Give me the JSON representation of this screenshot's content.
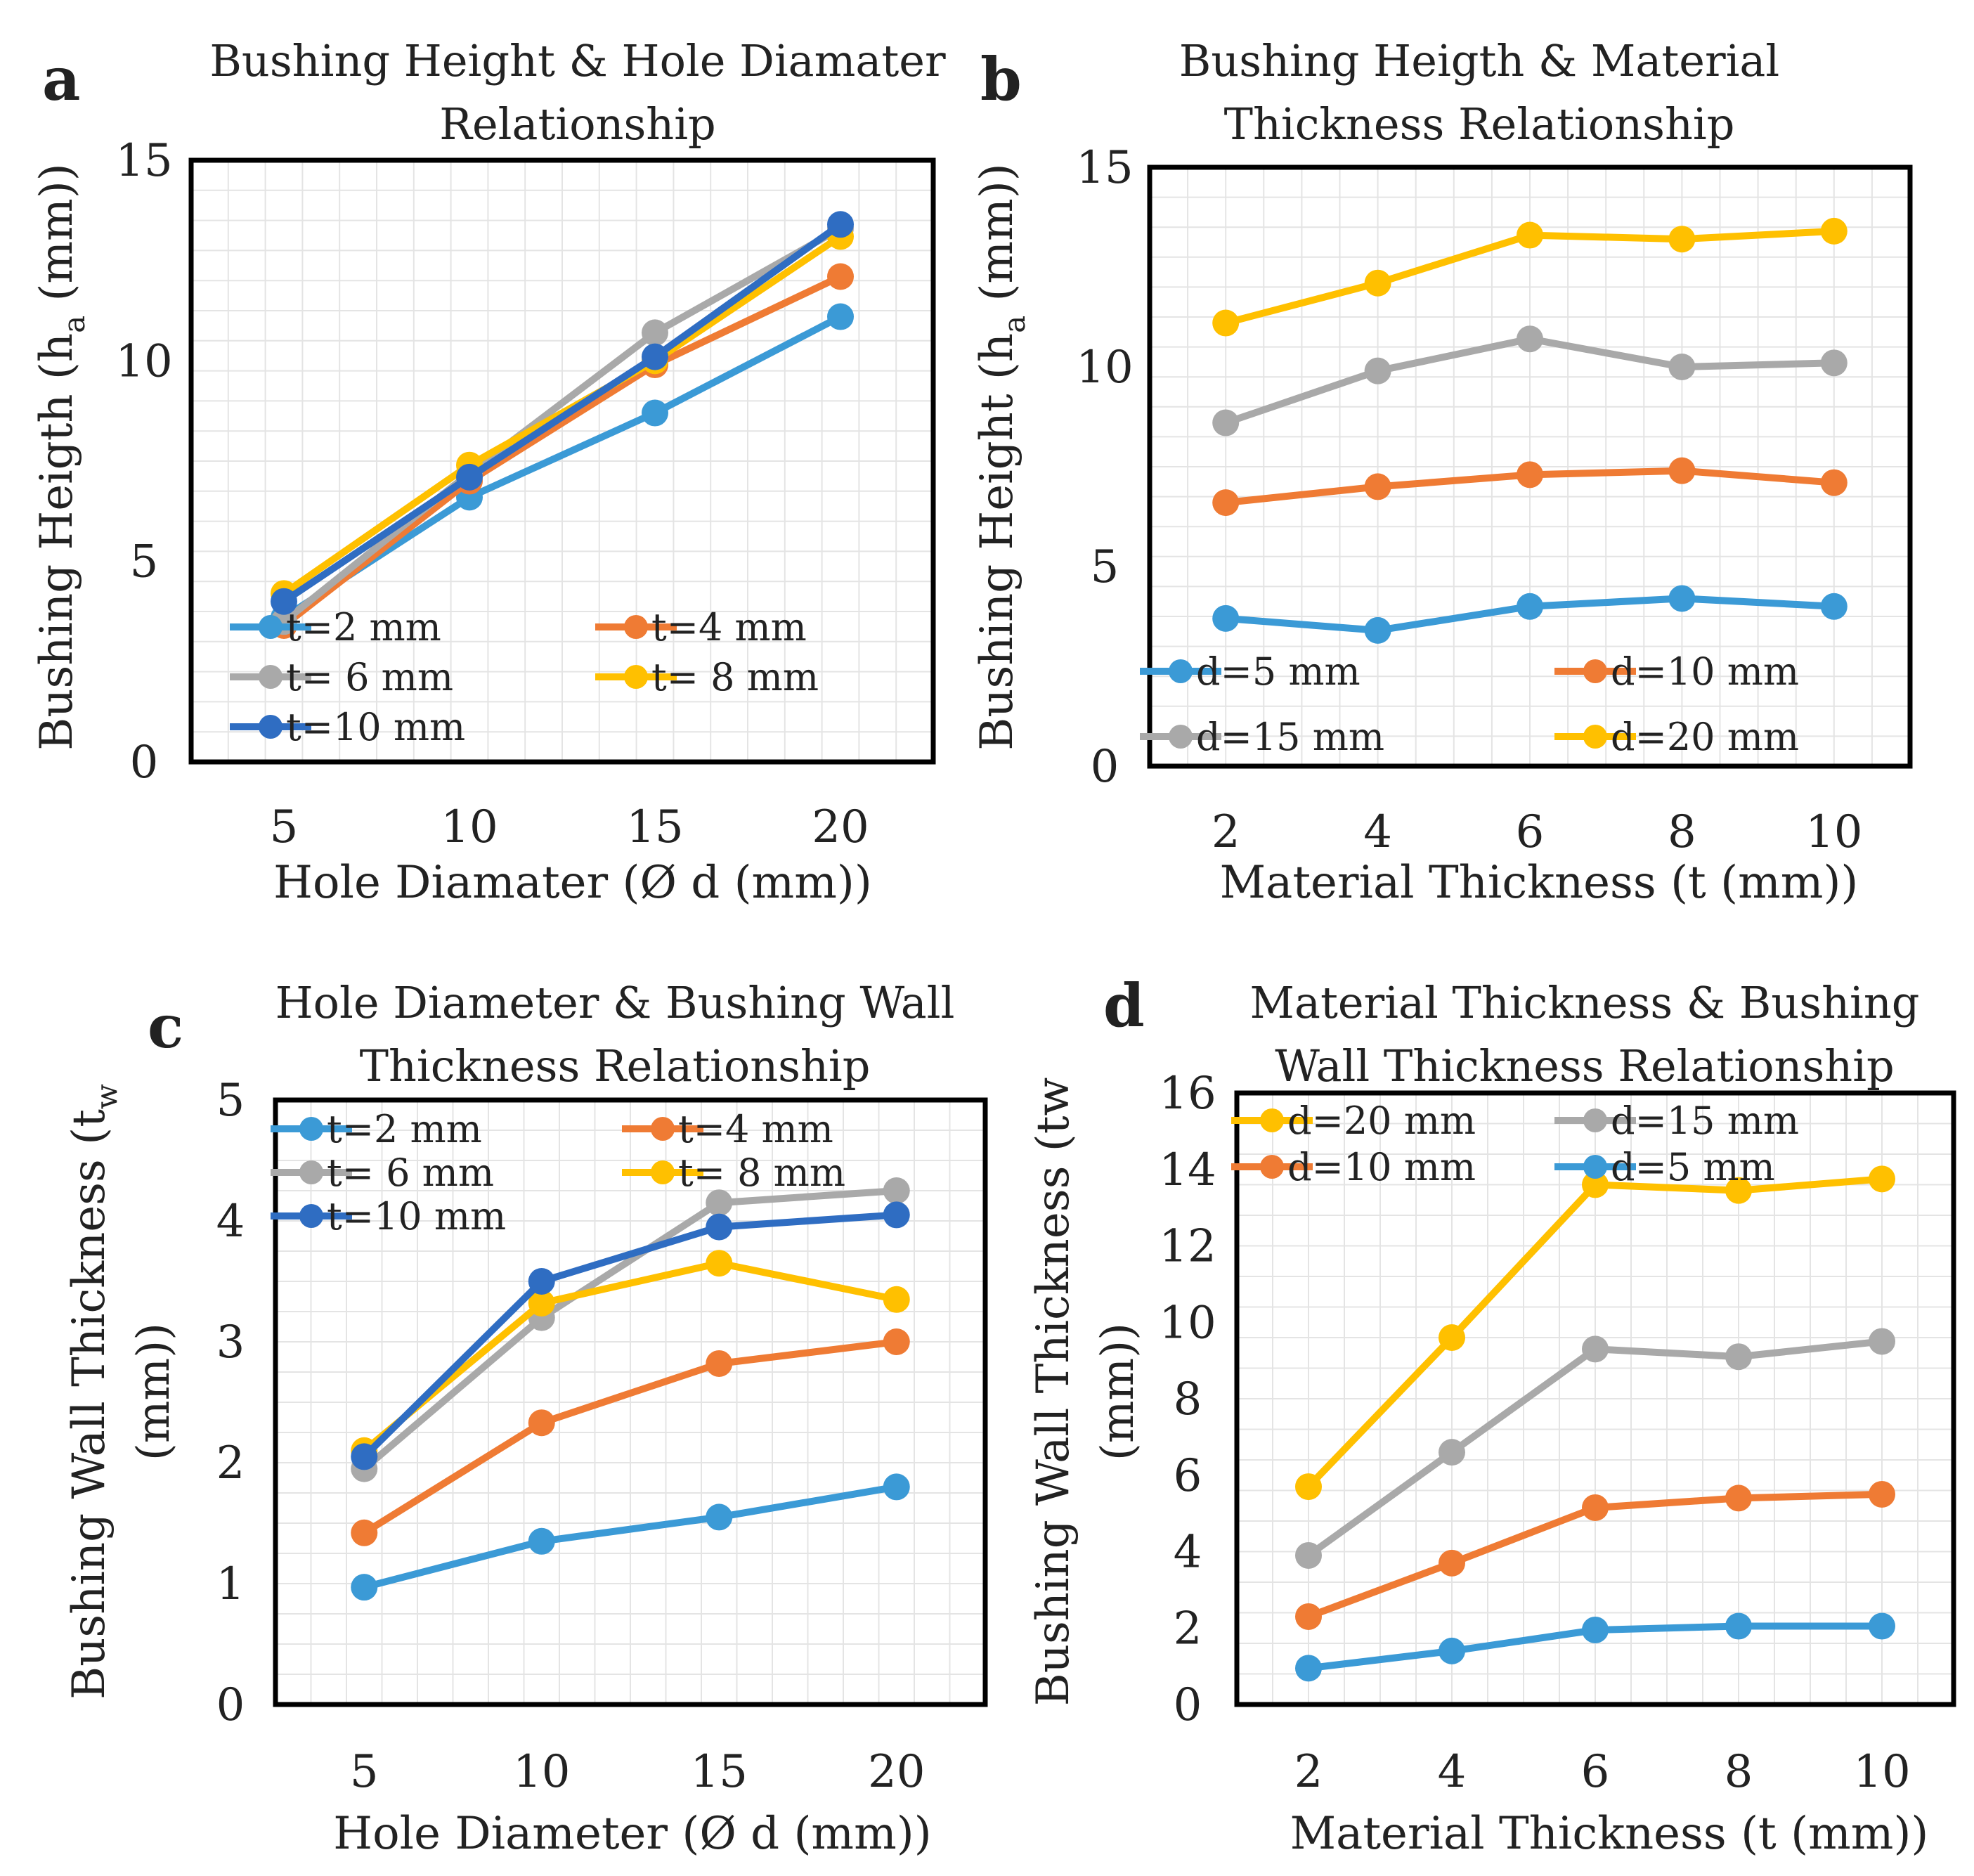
{
  "figure_labels": [
    "a",
    "b",
    "c",
    "d"
  ],
  "colors": {
    "blue": "#3b9ad6",
    "orange": "#ef7b34",
    "gray": "#a9a9a9",
    "yellow": "#ffc000",
    "darkblue": "#2f6dc2",
    "grid": "#e4e4e4",
    "frame": "#000000"
  },
  "chart_data": [
    {
      "type": "line",
      "panel": "a",
      "title": [
        "Bushing Height & Hole Diamater",
        "Relationship"
      ],
      "xlabel": "Hole Diamater (Ø d (mm))",
      "ylabel": "Bushing Heigth (ha (mm))",
      "ylabel_parts": [
        "Bushing Heigth (h",
        "a",
        " (mm))"
      ],
      "x": [
        5,
        10,
        15,
        20
      ],
      "x_ticks": [
        "5",
        "10",
        "15",
        "20"
      ],
      "ylim": [
        0,
        15
      ],
      "y_ticks": [
        "0",
        "5",
        "10",
        "15"
      ],
      "legend_position": "bottom-left",
      "legend_layout": "rows-of-2",
      "series": [
        {
          "name": "t=2 mm",
          "color": "blue",
          "values": [
            3.6,
            6.6,
            8.7,
            11.1
          ]
        },
        {
          "name": "t=4 mm",
          "color": "orange",
          "values": [
            3.4,
            7.0,
            9.9,
            12.1
          ]
        },
        {
          "name": "t= 6 mm",
          "color": "gray",
          "values": [
            3.5,
            7.2,
            10.7,
            13.3
          ]
        },
        {
          "name": "t= 8 mm",
          "color": "yellow",
          "values": [
            4.2,
            7.4,
            10.0,
            13.1
          ]
        },
        {
          "name": "t=10  mm",
          "color": "darkblue",
          "values": [
            4.0,
            7.1,
            10.1,
            13.4
          ]
        }
      ]
    },
    {
      "type": "line",
      "panel": "b",
      "title": [
        "Bushing Heigth & Material",
        "Thickness Relationship"
      ],
      "xlabel": "Material Thickness (t (mm))",
      "ylabel": "Bushing Height (ha (mm))",
      "ylabel_parts": [
        "Bushing Height (h",
        "a",
        " (mm))"
      ],
      "x": [
        2,
        4,
        6,
        8,
        10
      ],
      "x_ticks": [
        "2",
        "4",
        "6",
        "8",
        "10"
      ],
      "ylim": [
        0,
        15
      ],
      "y_ticks": [
        "0",
        "5",
        "10",
        "15"
      ],
      "legend_position": "bottom",
      "legend_layout": "rows-of-2",
      "series": [
        {
          "name": "d=5 mm",
          "color": "blue",
          "values": [
            3.7,
            3.4,
            4.0,
            4.2,
            4.0
          ]
        },
        {
          "name": "d=10 mm",
          "color": "orange",
          "values": [
            6.6,
            7.0,
            7.3,
            7.4,
            7.1
          ]
        },
        {
          "name": "d=15 mm",
          "color": "gray",
          "values": [
            8.6,
            9.9,
            10.7,
            10.0,
            10.1
          ]
        },
        {
          "name": "d=20 mm",
          "color": "yellow",
          "values": [
            11.1,
            12.1,
            13.3,
            13.2,
            13.4
          ]
        }
      ]
    },
    {
      "type": "line",
      "panel": "c",
      "title": [
        "Hole Diameter & Bushing Wall",
        "Thickness Relationship"
      ],
      "xlabel": "Hole Diameter (Ø d (mm))",
      "ylabel": "Bushing Wall Thickness (tw (mm))",
      "ylabel_lines": [
        [
          "Bushing Wall Thickness (t",
          "w"
        ],
        [
          "(mm))"
        ]
      ],
      "x": [
        5,
        10,
        15,
        20
      ],
      "x_ticks": [
        "5",
        "10",
        "15",
        "20"
      ],
      "ylim": [
        0,
        5
      ],
      "y_ticks": [
        "0",
        "1",
        "2",
        "3",
        "4",
        "5"
      ],
      "legend_position": "top-left",
      "legend_layout": "rows-of-2",
      "series": [
        {
          "name": "t=2 mm",
          "color": "blue",
          "values": [
            0.97,
            1.35,
            1.55,
            1.8
          ]
        },
        {
          "name": "t=4 mm",
          "color": "orange",
          "values": [
            1.42,
            2.33,
            2.82,
            3.0
          ]
        },
        {
          "name": "t= 6 mm",
          "color": "gray",
          "values": [
            1.95,
            3.2,
            4.15,
            4.25
          ]
        },
        {
          "name": "t= 8 mm",
          "color": "yellow",
          "values": [
            2.1,
            3.32,
            3.65,
            3.35
          ]
        },
        {
          "name": "t=10  mm",
          "color": "darkblue",
          "values": [
            2.05,
            3.5,
            3.95,
            4.05
          ]
        }
      ]
    },
    {
      "type": "line",
      "panel": "d",
      "title": [
        "Material Thickness  & Bushing",
        "Wall Thickness Relationship"
      ],
      "xlabel": "Material Thickness (t (mm))",
      "ylabel": "Bushing Wall Thickness (tw (mm))",
      "ylabel_lines": [
        [
          "Bushing Wall Thickness (tw"
        ],
        [
          "(mm))"
        ]
      ],
      "x": [
        2,
        4,
        6,
        8,
        10
      ],
      "x_ticks": [
        "2",
        "4",
        "6",
        "8",
        "10"
      ],
      "ylim": [
        0,
        16
      ],
      "y_ticks": [
        "0",
        "2",
        "4",
        "6",
        "8",
        "10",
        "12",
        "14",
        "16"
      ],
      "legend_position": "top-left",
      "legend_layout": "rows-of-2",
      "series": [
        {
          "name": "d=20 mm",
          "color": "yellow",
          "values": [
            5.7,
            9.6,
            13.6,
            13.45,
            13.75
          ]
        },
        {
          "name": "d=15 mm",
          "color": "gray",
          "values": [
            3.9,
            6.6,
            9.3,
            9.1,
            9.5
          ]
        },
        {
          "name": "d=10 mm",
          "color": "orange",
          "values": [
            2.3,
            3.7,
            5.15,
            5.4,
            5.5
          ]
        },
        {
          "name": "d=5 mm",
          "color": "blue",
          "values": [
            0.95,
            1.4,
            1.95,
            2.05,
            2.05
          ]
        }
      ]
    }
  ]
}
